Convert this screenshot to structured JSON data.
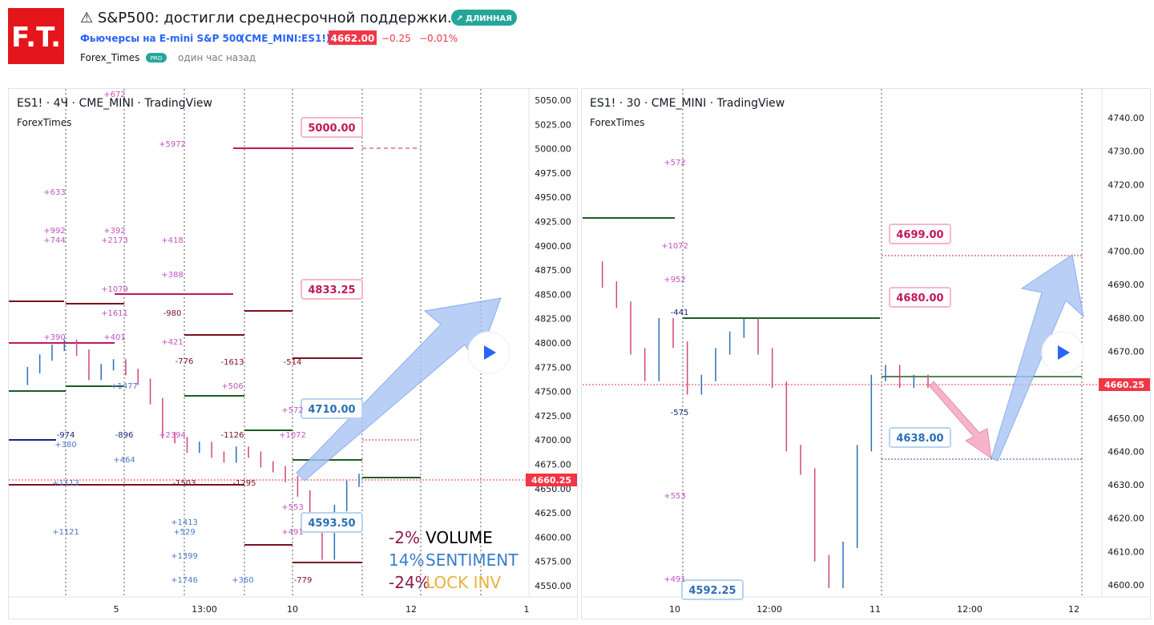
{
  "header": {
    "logo": "F.T.",
    "title": "⚠ S&P500: достигли среднесрочной поддержки.",
    "badge": "↗ ДЛИННАЯ",
    "instrument": "Фьючерсы на E-mini S&P 500",
    "symbol": "(CME_MINI:ES1!)",
    "price": "4662.00",
    "change": "−0.25",
    "change_pct": "−0.01%",
    "author": "Forex_Times",
    "pro": "PRO",
    "time": "один час назад"
  },
  "left_panel": {
    "title": "ES1! · 4Ч · CME_MINI · TradingView",
    "subtitle": "ForexTimes",
    "price_ticks": [
      "5050.00",
      "5025.00",
      "5000.00",
      "4975.00",
      "4950.00",
      "4925.00",
      "4900.00",
      "4875.00",
      "4850.00",
      "4825.00",
      "4800.00",
      "4775.00",
      "4750.00",
      "4725.00",
      "4700.00",
      "4675.00",
      "4650.00",
      "4625.00",
      "4600.00",
      "4575.00",
      "4550.00"
    ],
    "time_labels": [
      "5",
      "13:00",
      "10",
      "12",
      "1"
    ],
    "tags": [
      "5000.00",
      "4833.25",
      "4710.00",
      "4593.50"
    ],
    "current": "4660.25",
    "closes": [
      4760,
      4772,
      4785,
      4795,
      4800,
      4790,
      4765,
      4775,
      4780,
      4770,
      4760,
      4740,
      4705,
      4700,
      4690,
      4695,
      4685,
      4680,
      4690,
      4685,
      4675,
      4670,
      4660,
      4645,
      4620,
      4580,
      4630,
      4655,
      4662
    ],
    "annotations": [
      "+672",
      "+5972",
      "+633",
      "+992",
      "+744",
      "+392",
      "+2173",
      "+418",
      "+388",
      "+1079",
      "+1611",
      "-980",
      "+390",
      "+401",
      "+421",
      "-776",
      "-1613",
      "-514",
      "+1477",
      "+506",
      "+572",
      "-974",
      "-896",
      "+2394",
      "-1126",
      "+1072",
      "+380",
      "+464",
      "+1113",
      "-1503",
      "-1295",
      "+553",
      "+1413",
      "+529",
      "+1121",
      "+491",
      "+1399",
      "+1746",
      "+360",
      "-779"
    ],
    "legend": [
      [
        "-2%",
        "VOLUME"
      ],
      [
        "14%",
        "SENTIMENT"
      ],
      [
        "-24%",
        "LOCK INV"
      ]
    ]
  },
  "right_panel": {
    "title": "ES1! · 30 · CME_MINI · TradingView",
    "subtitle": "ForexTimes",
    "price_ticks": [
      "4740.00",
      "4730.00",
      "4720.00",
      "4710.00",
      "4700.00",
      "4690.00",
      "4680.00",
      "4670.00",
      "4660.00",
      "4650.00",
      "4640.00",
      "4630.00",
      "4620.00",
      "4610.00",
      "4600.00"
    ],
    "time_labels": [
      "10",
      "12:00",
      "11",
      "12:00",
      "12"
    ],
    "tags": [
      "4699.00",
      "4680.00",
      "4638.00",
      "4592.25"
    ],
    "current": "4660.25",
    "closes": [
      4696,
      4690,
      4684,
      4670,
      4662,
      4679,
      4672,
      4658,
      4662,
      4670,
      4675,
      4679,
      4670,
      4660,
      4641,
      4634,
      4608,
      4600,
      4612,
      4641,
      4662,
      4665,
      4660,
      4662,
      4660
    ],
    "annotations": [
      "+572",
      "+1072",
      "+952",
      "-441",
      "-575",
      "+553",
      "+491"
    ]
  }
}
